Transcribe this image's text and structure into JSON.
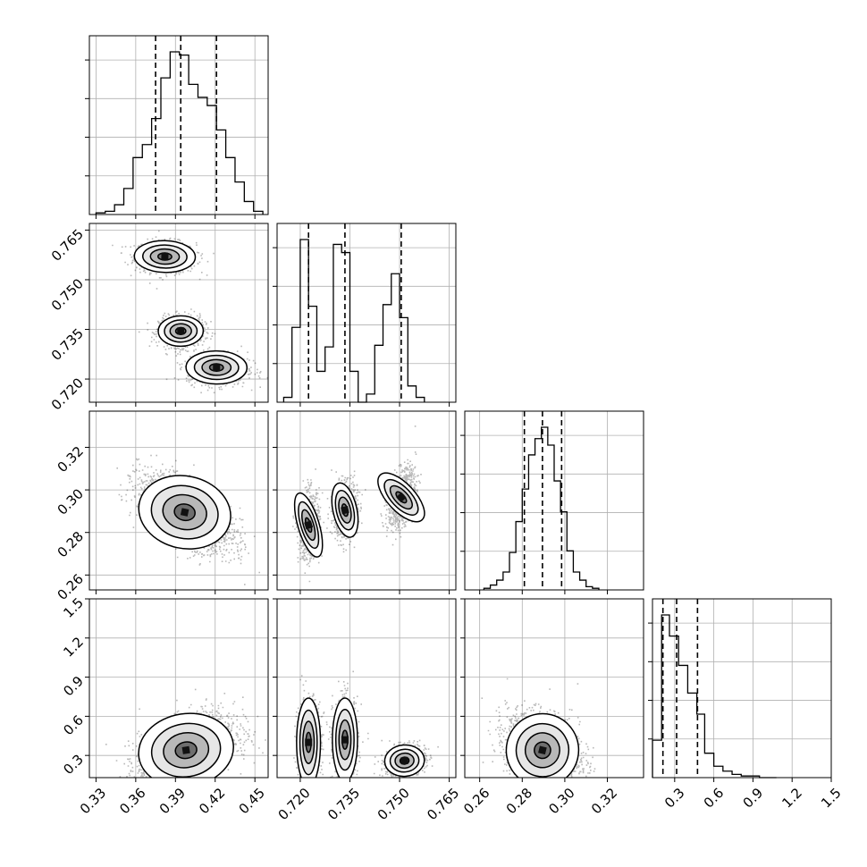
{
  "chart_data": {
    "type": "corner",
    "grid": true,
    "colors": {
      "ink": "#000000",
      "grid": "#b0b0b0",
      "scatter": "#000000"
    },
    "parameters": [
      {
        "range": [
          0.325,
          0.46
        ],
        "ticks": [
          0.33,
          0.36,
          0.39,
          0.42,
          0.45
        ],
        "tick_labels": [
          "0.33",
          "0.36",
          "0.39",
          "0.42",
          "0.45"
        ]
      },
      {
        "range": [
          0.713,
          0.767
        ],
        "ticks": [
          0.72,
          0.735,
          0.75,
          0.765
        ],
        "tick_labels": [
          "0.720",
          "0.735",
          "0.750",
          "0.765"
        ]
      },
      {
        "range": [
          0.253,
          0.337
        ],
        "ticks": [
          0.26,
          0.28,
          0.3,
          0.32
        ],
        "tick_labels": [
          "0.26",
          "0.28",
          "0.30",
          "0.32"
        ]
      },
      {
        "range": [
          0.13,
          1.5
        ],
        "ticks": [
          0.3,
          0.6,
          0.9,
          1.2,
          1.5
        ],
        "tick_labels": [
          "0.3",
          "0.6",
          "0.9",
          "1.2",
          "1.5"
        ]
      }
    ],
    "histograms": [
      {
        "parameter": 0,
        "quantiles": [
          0.375,
          0.394,
          0.421
        ],
        "bin_edges": [
          0.33,
          0.337,
          0.344,
          0.351,
          0.358,
          0.365,
          0.372,
          0.379,
          0.386,
          0.393,
          0.4,
          0.407,
          0.414,
          0.421,
          0.428,
          0.435,
          0.442,
          0.449,
          0.456
        ],
        "counts": [
          1,
          2,
          6,
          16,
          35,
          43,
          59,
          84,
          100,
          98,
          80,
          72,
          67,
          52,
          35,
          20,
          8,
          2
        ]
      },
      {
        "parameter": 1,
        "quantiles": [
          0.7225,
          0.7335,
          0.7505
        ],
        "bin_edges": [
          0.715,
          0.7175,
          0.72,
          0.7225,
          0.725,
          0.7275,
          0.73,
          0.7325,
          0.735,
          0.7375,
          0.74,
          0.7425,
          0.745,
          0.7475,
          0.75,
          0.7525,
          0.755,
          0.7575
        ],
        "counts": [
          3,
          46,
          100,
          59,
          19,
          34,
          97,
          92,
          19,
          0,
          5,
          35,
          60,
          79,
          52,
          10,
          3
        ]
      },
      {
        "parameter": 2,
        "quantiles": [
          0.281,
          0.2895,
          0.2985
        ],
        "bin_edges": [
          0.262,
          0.265,
          0.268,
          0.271,
          0.274,
          0.277,
          0.28,
          0.283,
          0.286,
          0.289,
          0.292,
          0.295,
          0.298,
          0.301,
          0.304,
          0.307,
          0.31,
          0.313,
          0.316
        ],
        "counts": [
          1,
          3,
          6,
          11,
          23,
          42,
          62,
          83,
          93,
          100,
          89,
          67,
          48,
          24,
          11,
          6,
          2,
          1
        ]
      },
      {
        "parameter": 3,
        "quantiles": [
          0.21,
          0.315,
          0.475
        ],
        "bin_edges": [
          0.13,
          0.2,
          0.26,
          0.33,
          0.4,
          0.47,
          0.53,
          0.6,
          0.67,
          0.74,
          0.81,
          0.88,
          0.95,
          1.02,
          1.08
        ],
        "counts": [
          23,
          100,
          87,
          69,
          52,
          39,
          15,
          7,
          4,
          2,
          1,
          1,
          0,
          0
        ]
      }
    ],
    "pairs": [
      {
        "x": 0,
        "y": 1,
        "clusters": [
          {
            "mean": [
              0.382,
              0.757
            ],
            "sd": [
              0.0115,
              0.0024
            ],
            "rho": -0.1,
            "weight": 0.33
          },
          {
            "mean": [
              0.394,
              0.7345
            ],
            "sd": [
              0.0085,
              0.0023
            ],
            "rho": 0.05,
            "weight": 0.33
          },
          {
            "mean": [
              0.421,
              0.7235
            ],
            "sd": [
              0.0115,
              0.0025
            ],
            "rho": -0.05,
            "weight": 0.34
          }
        ]
      },
      {
        "x": 0,
        "y": 2,
        "clusters": [
          {
            "mean": [
              0.397,
              0.2895
            ],
            "sd": [
              0.0175,
              0.0085
            ],
            "rho": -0.6,
            "weight": 1.0
          }
        ]
      },
      {
        "x": 1,
        "y": 2,
        "clusters": [
          {
            "mean": [
              0.7225,
              0.2835
            ],
            "sd": [
              0.0016,
              0.0078
            ],
            "rho": 0.1,
            "weight": 0.33
          },
          {
            "mean": [
              0.7335,
              0.2905
            ],
            "sd": [
              0.0018,
              0.0065
            ],
            "rho": 0.1,
            "weight": 0.33
          },
          {
            "mean": [
              0.7505,
              0.2965
            ],
            "sd": [
              0.0021,
              0.0072
            ],
            "rho": 0.45,
            "weight": 0.34
          }
        ]
      },
      {
        "x": 0,
        "y": 3,
        "clusters": [
          {
            "mean": [
              0.398,
              0.34
            ],
            "sd": [
              0.018,
              0.14
            ],
            "rho": 0.45,
            "weight": 1.0
          }
        ]
      },
      {
        "x": 1,
        "y": 3,
        "clusters": [
          {
            "mean": [
              0.7225,
              0.4
            ],
            "sd": [
              0.0018,
              0.17
            ],
            "rho": 0.0,
            "weight": 0.33
          },
          {
            "mean": [
              0.7335,
              0.42
            ],
            "sd": [
              0.0019,
              0.16
            ],
            "rho": 0.0,
            "weight": 0.33
          },
          {
            "mean": [
              0.7515,
              0.26
            ],
            "sd": [
              0.003,
              0.06
            ],
            "rho": 0.2,
            "weight": 0.34
          }
        ]
      },
      {
        "x": 2,
        "y": 3,
        "clusters": [
          {
            "mean": [
              0.2895,
              0.34
            ],
            "sd": [
              0.0085,
              0.14
            ],
            "rho": -0.25,
            "weight": 1.0
          }
        ]
      }
    ]
  }
}
